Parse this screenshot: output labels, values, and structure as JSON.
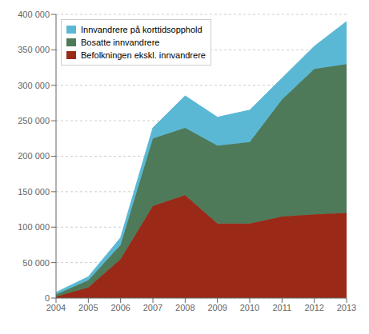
{
  "chart_data": {
    "type": "area",
    "stacked": true,
    "x": [
      2004,
      2005,
      2006,
      2007,
      2008,
      2009,
      2010,
      2011,
      2012,
      2013
    ],
    "series": [
      {
        "name": "Befolkningen ekskl. innvandrere",
        "color": "#9b2918",
        "values": [
          2000,
          15000,
          55000,
          130000,
          145000,
          105000,
          105000,
          115000,
          118000,
          120000
        ]
      },
      {
        "name": "Bosatte innvandrere",
        "color": "#4e7a5a",
        "values": [
          3000,
          10000,
          20000,
          95000,
          95000,
          110000,
          115000,
          165000,
          205000,
          210000
        ]
      },
      {
        "name": "Innvandrere på korttidsopphold",
        "color": "#5ab8d4",
        "values": [
          3000,
          5000,
          10000,
          15000,
          45000,
          40000,
          45000,
          30000,
          32000,
          60000
        ]
      }
    ],
    "xlim": [
      2004,
      2013
    ],
    "xticks": [
      2004,
      2005,
      2006,
      2007,
      2008,
      2009,
      2010,
      2011,
      2012,
      2013
    ],
    "ylim": [
      0,
      400000
    ],
    "yticks": [
      0,
      {
        "value": 50000,
        "label": "50 000"
      },
      {
        "value": 100000,
        "label": "100 000"
      },
      {
        "value": 150000,
        "label": "150 000"
      },
      {
        "value": 200000,
        "label": "200 000"
      },
      {
        "value": 250000,
        "label": "250 000"
      },
      {
        "value": 300000,
        "label": "300 000"
      },
      {
        "value": 350000,
        "label": "350 000"
      },
      {
        "value": 400000,
        "label": "400 000"
      }
    ],
    "grid": true,
    "legend": "upper left"
  }
}
